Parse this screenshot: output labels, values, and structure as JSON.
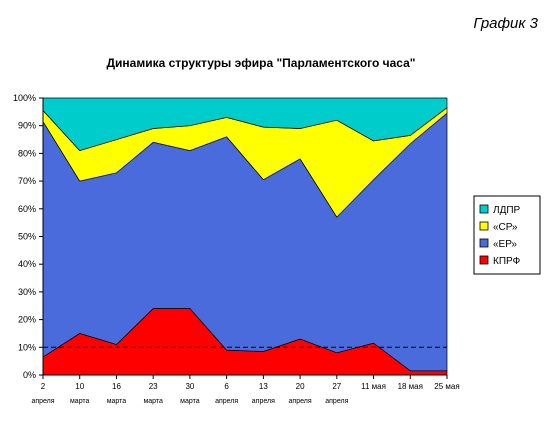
{
  "corner_label": "График 3",
  "chart_data": {
    "type": "area",
    "stacked": true,
    "title": "Динамика структуры эфира \"Парламентского часа\"",
    "categories": [
      {
        "line1": "2",
        "line2": "апреля"
      },
      {
        "line1": "10",
        "line2": "марта"
      },
      {
        "line1": "16",
        "line2": "марта"
      },
      {
        "line1": "23",
        "line2": "марта"
      },
      {
        "line1": "30",
        "line2": "марта"
      },
      {
        "line1": "6",
        "line2": "апреля"
      },
      {
        "line1": "13",
        "line2": "апреля"
      },
      {
        "line1": "20",
        "line2": "апреля"
      },
      {
        "line1": "27",
        "line2": "апреля"
      },
      {
        "line1": "11 мая",
        "line2": ""
      },
      {
        "line1": "18 мая",
        "line2": ""
      },
      {
        "line1": "25 мая",
        "line2": ""
      }
    ],
    "series": [
      {
        "name": "КПРФ",
        "color": "#ff0000",
        "values": [
          6.5,
          15,
          11,
          24,
          24,
          9,
          8.5,
          13,
          8,
          11.5,
          1.5,
          1.5
        ]
      },
      {
        "name": "«ЕР»",
        "color": "#4a6bdc",
        "values": [
          85,
          55,
          62,
          60,
          57,
          77,
          62,
          65,
          49,
          59,
          82,
          93
        ]
      },
      {
        "name": "«СР»",
        "color": "#ffff00",
        "values": [
          4,
          11,
          12,
          5,
          9,
          7,
          19,
          11,
          35,
          14,
          3,
          2
        ]
      },
      {
        "name": "ЛДПР",
        "color": "#00cccc",
        "values": [
          4.5,
          19,
          15,
          11,
          10,
          7,
          10.5,
          11,
          8,
          15.5,
          13.5,
          3.5
        ]
      }
    ],
    "ylim": [
      0,
      100
    ],
    "y_ticks": [
      "0%",
      "10%",
      "20%",
      "30%",
      "40%",
      "50%",
      "60%",
      "70%",
      "80%",
      "90%",
      "100%"
    ],
    "reference_line": {
      "value": 10,
      "style": "dashed"
    },
    "legend_order": [
      "ЛДПР",
      "«СР»",
      "«ЕР»",
      "КПРФ"
    ],
    "legend_position": "right",
    "grid": false
  }
}
